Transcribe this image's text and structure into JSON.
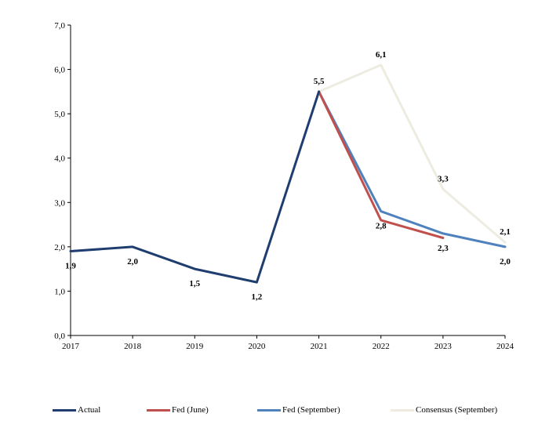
{
  "chart_data": {
    "type": "line",
    "x": [
      "2017",
      "2018",
      "2019",
      "2020",
      "2021",
      "2022",
      "2023",
      "2024"
    ],
    "ylim": [
      0,
      7
    ],
    "yticks": [
      "0,0",
      "1,0",
      "2,0",
      "3,0",
      "4,0",
      "5,0",
      "6,0",
      "7,0"
    ],
    "grid": false,
    "legend_position": "bottom",
    "series": [
      {
        "name": "Actual",
        "color": "#1f3e6f",
        "values": [
          1.9,
          2.0,
          1.5,
          1.2,
          5.5,
          null,
          null,
          null
        ]
      },
      {
        "name": "Fed (June)",
        "color": "#c0504d",
        "values": [
          null,
          null,
          null,
          null,
          5.5,
          2.6,
          2.2,
          null
        ]
      },
      {
        "name": "Fed (September)",
        "color": "#4f81bd",
        "values": [
          null,
          null,
          null,
          null,
          5.5,
          2.8,
          2.3,
          2.0
        ]
      },
      {
        "name": "Consensus (September)",
        "color": "#eeece1",
        "values": [
          null,
          null,
          null,
          null,
          5.5,
          6.1,
          3.3,
          2.1
        ]
      }
    ],
    "data_labels": [
      {
        "xi": 0,
        "y": 1.9,
        "text": "1,9",
        "pos": "below"
      },
      {
        "xi": 1,
        "y": 2.0,
        "text": "2,0",
        "pos": "below"
      },
      {
        "xi": 2,
        "y": 1.5,
        "text": "1,5",
        "pos": "below"
      },
      {
        "xi": 3,
        "y": 1.2,
        "text": "1,2",
        "pos": "below"
      },
      {
        "xi": 4,
        "y": 5.5,
        "text": "5,5",
        "pos": "above"
      },
      {
        "xi": 5,
        "y": 6.1,
        "text": "6,1",
        "pos": "above"
      },
      {
        "xi": 5,
        "y": 2.8,
        "text": "2,8",
        "pos": "below"
      },
      {
        "xi": 6,
        "y": 3.3,
        "text": "3,3",
        "pos": "above"
      },
      {
        "xi": 6,
        "y": 2.3,
        "text": "2,3",
        "pos": "below"
      },
      {
        "xi": 7,
        "y": 2.1,
        "text": "2,1",
        "pos": "above"
      },
      {
        "xi": 7,
        "y": 2.0,
        "text": "2,0",
        "pos": "below"
      }
    ]
  }
}
